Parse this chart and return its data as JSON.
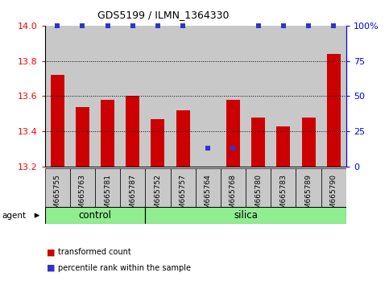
{
  "title": "GDS5199 / ILMN_1364330",
  "samples": [
    "GSM665755",
    "GSM665763",
    "GSM665781",
    "GSM665787",
    "GSM665752",
    "GSM665757",
    "GSM665764",
    "GSM665768",
    "GSM665780",
    "GSM665783",
    "GSM665789",
    "GSM665790"
  ],
  "bar_values": [
    13.72,
    13.54,
    13.58,
    13.6,
    13.47,
    13.52,
    13.2,
    13.58,
    13.48,
    13.43,
    13.48,
    13.84
  ],
  "percentile_values": [
    100,
    100,
    100,
    100,
    100,
    100,
    13,
    13,
    100,
    100,
    100,
    100
  ],
  "bar_color": "#cc0000",
  "percentile_color": "#3333cc",
  "ylim_left": [
    13.2,
    14.0
  ],
  "ylim_right": [
    0,
    100
  ],
  "yticks_left": [
    13.2,
    13.4,
    13.6,
    13.8,
    14.0
  ],
  "yticks_right": [
    0,
    25,
    50,
    75,
    100
  ],
  "ytick_labels_right": [
    "0",
    "25",
    "50",
    "75",
    "100%"
  ],
  "grid_values": [
    13.4,
    13.6,
    13.8
  ],
  "control_count": 4,
  "silica_count": 8,
  "group_color": "#90ee90",
  "group_labels": [
    "control",
    "silica"
  ],
  "agent_label": "agent",
  "legend_bar_label": "transformed count",
  "legend_pct_label": "percentile rank within the sample",
  "tick_area_color": "#c8c8c8",
  "bar_width": 0.55,
  "percentile_marker_size": 5,
  "white": "#ffffff",
  "black": "#000000"
}
